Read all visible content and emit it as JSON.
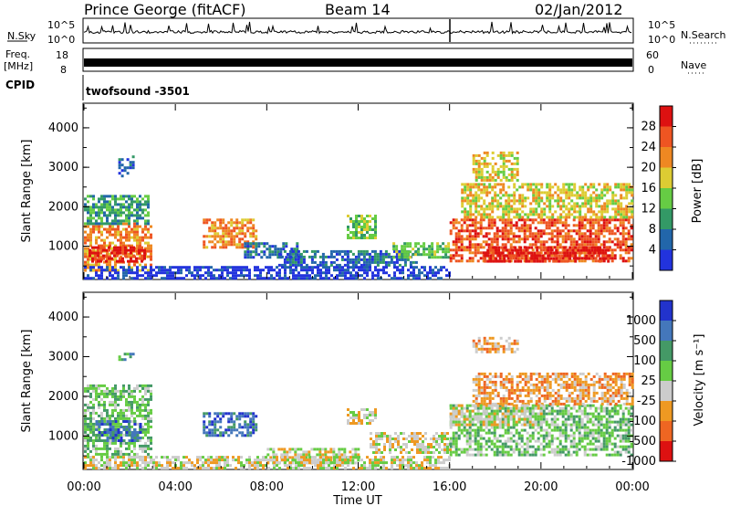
{
  "header": {
    "site": "Prince George (fitACF)",
    "beam": "Beam 14",
    "date": "02/Jan/2012"
  },
  "top_panels": {
    "nsky": {
      "label": "N.Sky",
      "right_label": "N.Search",
      "y_top": "10^5",
      "y_bottom": "10^0",
      "right_top": "10^5",
      "right_bottom": "10^0"
    },
    "freq": {
      "label_line1": "Freq.",
      "label_line2": "[MHz]",
      "y_top": "18",
      "y_bottom": "8",
      "right_label": "Nave",
      "right_top": "60",
      "right_bottom": "0"
    },
    "cpid": {
      "label": "CPID",
      "value": "twofsound -3501"
    }
  },
  "chart_data": [
    {
      "type": "heatmap",
      "name": "power",
      "ylabel": "Slant Range [km]",
      "ylim": [
        180,
        4600
      ],
      "yticks": [
        "1000",
        "2000",
        "3000",
        "4000"
      ],
      "colorbar_label": "Power [dB]",
      "colorbar_ticks": [
        "4",
        "8",
        "12",
        "16",
        "20",
        "24",
        "28"
      ],
      "colors": [
        "#2233dd",
        "#2266aa",
        "#339966",
        "#66cc44",
        "#ddcc33",
        "#ee8822",
        "#ee5522",
        "#dd1111"
      ],
      "regions": [
        {
          "t": [
            0.0,
            2.9
          ],
          "r": [
            400,
            1600
          ],
          "level": 6
        },
        {
          "t": [
            0.2,
            2.6
          ],
          "r": [
            600,
            1000
          ],
          "level": 8
        },
        {
          "t": [
            0.0,
            2.8
          ],
          "r": [
            1600,
            2300
          ],
          "level": 3
        },
        {
          "t": [
            1.5,
            2.2
          ],
          "r": [
            2800,
            3300
          ],
          "level": 2
        },
        {
          "t": [
            5.2,
            7.5
          ],
          "r": [
            1000,
            1700
          ],
          "level": 6
        },
        {
          "t": [
            7.0,
            9.5
          ],
          "r": [
            700,
            1100
          ],
          "level": 2
        },
        {
          "t": [
            8.5,
            14.5
          ],
          "r": [
            500,
            900
          ],
          "level": 2
        },
        {
          "t": [
            11.5,
            12.8
          ],
          "r": [
            1200,
            1800
          ],
          "level": 4
        },
        {
          "t": [
            13.5,
            16.0
          ],
          "r": [
            700,
            1100
          ],
          "level": 4
        },
        {
          "t": [
            16.0,
            24.0
          ],
          "r": [
            600,
            1700
          ],
          "level": 7
        },
        {
          "t": [
            17.5,
            23.0
          ],
          "r": [
            650,
            1000
          ],
          "level": 8
        },
        {
          "t": [
            16.5,
            24.0
          ],
          "r": [
            1700,
            2600
          ],
          "level": 5
        },
        {
          "t": [
            17.0,
            19.0
          ],
          "r": [
            2700,
            3400
          ],
          "level": 5
        },
        {
          "t": [
            0.0,
            16.0
          ],
          "r": [
            200,
            500
          ],
          "level": 1
        }
      ]
    },
    {
      "type": "heatmap",
      "name": "velocity",
      "ylabel": "Slant Range [km]",
      "ylim": [
        180,
        4600
      ],
      "yticks": [
        "1000",
        "2000",
        "3000",
        "4000"
      ],
      "xlabel": "Time UT",
      "xticks": [
        "00:00",
        "04:00",
        "08:00",
        "12:00",
        "16:00",
        "20:00",
        "00:00"
      ],
      "xlim": [
        0,
        24
      ],
      "colorbar_label": "Velocity [m s⁻¹]",
      "colorbar_ticks": [
        "1000",
        "500",
        "100",
        "25",
        "-25",
        "-100",
        "-500",
        "-1000"
      ],
      "colors": [
        "#2233cc",
        "#4477bb",
        "#449966",
        "#66cc44",
        "#cccccc",
        "#ee9922",
        "#ee6622",
        "#dd1111"
      ],
      "regions": [
        {
          "t": [
            0.0,
            2.9
          ],
          "r": [
            500,
            2300
          ],
          "level": 4
        },
        {
          "t": [
            0.5,
            2.5
          ],
          "r": [
            900,
            1400
          ],
          "level": 2
        },
        {
          "t": [
            1.5,
            2.2
          ],
          "r": [
            2900,
            3100
          ],
          "level": 3
        },
        {
          "t": [
            5.2,
            7.5
          ],
          "r": [
            1000,
            1600
          ],
          "level": 2
        },
        {
          "t": [
            8.0,
            12.0
          ],
          "r": [
            300,
            700
          ],
          "level": 5
        },
        {
          "t": [
            11.5,
            12.8
          ],
          "r": [
            1300,
            1700
          ],
          "level": 5
        },
        {
          "t": [
            12.5,
            16.0
          ],
          "r": [
            600,
            1100
          ],
          "level": 5
        },
        {
          "t": [
            16.0,
            24.0
          ],
          "r": [
            500,
            1800
          ],
          "level": 4
        },
        {
          "t": [
            17.0,
            24.0
          ],
          "r": [
            1800,
            2600
          ],
          "level": 6
        },
        {
          "t": [
            17.0,
            19.0
          ],
          "r": [
            3100,
            3500
          ],
          "level": 6
        },
        {
          "t": [
            16.0,
            20.0
          ],
          "r": [
            1300,
            1800
          ],
          "level": 5
        },
        {
          "t": [
            0.0,
            16.0
          ],
          "r": [
            200,
            500
          ],
          "level": 5
        }
      ]
    }
  ]
}
